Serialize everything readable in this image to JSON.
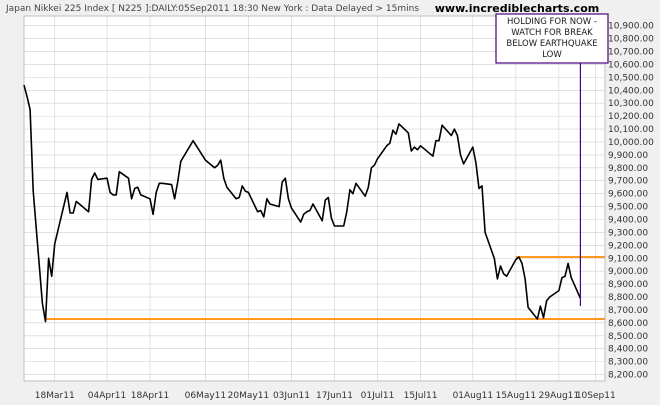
{
  "header": {
    "text": "Japan Nikkei 225 Index [ N225 ]:DAILY:05Sep2011 18:30 New York : Data Delayed > 15mins",
    "site": "www.incrediblecharts.com"
  },
  "colors": {
    "background": "#f0f0f0",
    "plot_background": "#ffffff",
    "grid": "#cfcfcf",
    "price_line": "#000000",
    "support_line": "#ff8c00",
    "annotation_border": "#4b0082",
    "annotation_fill": "#ffffff"
  },
  "chart_data": {
    "type": "line",
    "title": "Japan Nikkei 225 Index [ N225 ]:DAILY:05Sep2011 18:30 New York : Data Delayed > 15mins",
    "xlabel": "",
    "ylabel": "",
    "ylim": [
      8150,
      10975
    ],
    "grid": true,
    "y_axis_side": "right",
    "y_ticks": [
      8200,
      8300,
      8400,
      8500,
      8600,
      8700,
      8800,
      8900,
      9000,
      9100,
      9200,
      9300,
      9400,
      9500,
      9600,
      9700,
      9800,
      9900,
      10000,
      10100,
      10200,
      10300,
      10400,
      10500,
      10600,
      10700,
      10800,
      10900
    ],
    "y_tick_labels": [
      "8,200.00",
      "8,300.00",
      "8,400.00",
      "8,500.00",
      "8,600.00",
      "8,700.00",
      "8,800.00",
      "8,900.00",
      "9,000.00",
      "9,100.00",
      "9,200.00",
      "9,300.00",
      "9,400.00",
      "9,500.00",
      "9,600.00",
      "9,700.00",
      "9,800.00",
      "9,900.00",
      "10,000.00",
      "10,100.00",
      "10,200.00",
      "10,300.00",
      "10,400.00",
      "10,500.00",
      "10,600.00",
      "10,700.00",
      "10,800.00",
      "10,900.00"
    ],
    "x_ticks": [
      "2011-03-18",
      "2011-04-04",
      "2011-04-18",
      "2011-05-06",
      "2011-05-20",
      "2011-06-03",
      "2011-06-17",
      "2011-07-01",
      "2011-07-15",
      "2011-08-01",
      "2011-08-15",
      "2011-08-29",
      "2011-09-10"
    ],
    "x_tick_labels": [
      "18Mar11",
      "04Apr11",
      "18Apr11",
      "06May11",
      "20May11",
      "03Jun11",
      "17Jun11",
      "01Jul11",
      "15Jul11",
      "01Aug11",
      "15Aug11",
      "29Aug11",
      "10Sep11"
    ],
    "xlim": [
      "2011-03-08",
      "2011-09-13"
    ],
    "series": [
      {
        "values": [
          [
            "2011-03-08",
            10440
          ],
          [
            "2011-03-09",
            10350
          ],
          [
            "2011-03-10",
            10250
          ],
          [
            "2011-03-11",
            9620
          ],
          [
            "2011-03-14",
            8750
          ],
          [
            "2011-03-15",
            8610
          ],
          [
            "2011-03-16",
            9100
          ],
          [
            "2011-03-17",
            8960
          ],
          [
            "2011-03-18",
            9210
          ],
          [
            "2011-03-22",
            9610
          ],
          [
            "2011-03-23",
            9450
          ],
          [
            "2011-03-24",
            9450
          ],
          [
            "2011-03-25",
            9540
          ],
          [
            "2011-03-28",
            9480
          ],
          [
            "2011-03-29",
            9460
          ],
          [
            "2011-03-30",
            9710
          ],
          [
            "2011-03-31",
            9760
          ],
          [
            "2011-04-01",
            9710
          ],
          [
            "2011-04-04",
            9720
          ],
          [
            "2011-04-05",
            9610
          ],
          [
            "2011-04-06",
            9590
          ],
          [
            "2011-04-07",
            9590
          ],
          [
            "2011-04-08",
            9770
          ],
          [
            "2011-04-11",
            9720
          ],
          [
            "2011-04-12",
            9560
          ],
          [
            "2011-04-13",
            9640
          ],
          [
            "2011-04-14",
            9650
          ],
          [
            "2011-04-15",
            9590
          ],
          [
            "2011-04-18",
            9560
          ],
          [
            "2011-04-19",
            9440
          ],
          [
            "2011-04-20",
            9610
          ],
          [
            "2011-04-21",
            9680
          ],
          [
            "2011-04-22",
            9680
          ],
          [
            "2011-04-25",
            9670
          ],
          [
            "2011-04-26",
            9560
          ],
          [
            "2011-04-27",
            9690
          ],
          [
            "2011-04-28",
            9850
          ],
          [
            "2011-05-02",
            10010
          ],
          [
            "2011-05-06",
            9860
          ],
          [
            "2011-05-09",
            9800
          ],
          [
            "2011-05-10",
            9820
          ],
          [
            "2011-05-11",
            9860
          ],
          [
            "2011-05-12",
            9720
          ],
          [
            "2011-05-13",
            9650
          ],
          [
            "2011-05-16",
            9560
          ],
          [
            "2011-05-17",
            9570
          ],
          [
            "2011-05-18",
            9660
          ],
          [
            "2011-05-19",
            9620
          ],
          [
            "2011-05-20",
            9610
          ],
          [
            "2011-05-23",
            9460
          ],
          [
            "2011-05-24",
            9470
          ],
          [
            "2011-05-25",
            9420
          ],
          [
            "2011-05-26",
            9560
          ],
          [
            "2011-05-27",
            9520
          ],
          [
            "2011-05-30",
            9500
          ],
          [
            "2011-05-31",
            9690
          ],
          [
            "2011-06-01",
            9720
          ],
          [
            "2011-06-02",
            9560
          ],
          [
            "2011-06-03",
            9490
          ],
          [
            "2011-06-06",
            9380
          ],
          [
            "2011-06-07",
            9440
          ],
          [
            "2011-06-08",
            9460
          ],
          [
            "2011-06-09",
            9470
          ],
          [
            "2011-06-10",
            9520
          ],
          [
            "2011-06-13",
            9390
          ],
          [
            "2011-06-14",
            9550
          ],
          [
            "2011-06-15",
            9570
          ],
          [
            "2011-06-16",
            9410
          ],
          [
            "2011-06-17",
            9350
          ],
          [
            "2011-06-20",
            9350
          ],
          [
            "2011-06-21",
            9460
          ],
          [
            "2011-06-22",
            9630
          ],
          [
            "2011-06-23",
            9600
          ],
          [
            "2011-06-24",
            9680
          ],
          [
            "2011-06-27",
            9580
          ],
          [
            "2011-06-28",
            9650
          ],
          [
            "2011-06-29",
            9800
          ],
          [
            "2011-06-30",
            9820
          ],
          [
            "2011-07-01",
            9870
          ],
          [
            "2011-07-04",
            9970
          ],
          [
            "2011-07-05",
            9990
          ],
          [
            "2011-07-06",
            10090
          ],
          [
            "2011-07-07",
            10060
          ],
          [
            "2011-07-08",
            10140
          ],
          [
            "2011-07-11",
            10070
          ],
          [
            "2011-07-12",
            9930
          ],
          [
            "2011-07-13",
            9960
          ],
          [
            "2011-07-14",
            9940
          ],
          [
            "2011-07-15",
            9970
          ],
          [
            "2011-07-19",
            9890
          ],
          [
            "2011-07-20",
            10010
          ],
          [
            "2011-07-21",
            10010
          ],
          [
            "2011-07-22",
            10130
          ],
          [
            "2011-07-25",
            10050
          ],
          [
            "2011-07-26",
            10100
          ],
          [
            "2011-07-27",
            10050
          ],
          [
            "2011-07-28",
            9900
          ],
          [
            "2011-07-29",
            9830
          ],
          [
            "2011-08-01",
            9960
          ],
          [
            "2011-08-02",
            9840
          ],
          [
            "2011-08-03",
            9640
          ],
          [
            "2011-08-04",
            9660
          ],
          [
            "2011-08-05",
            9300
          ],
          [
            "2011-08-08",
            9100
          ],
          [
            "2011-08-09",
            8940
          ],
          [
            "2011-08-10",
            9040
          ],
          [
            "2011-08-11",
            8980
          ],
          [
            "2011-08-12",
            8960
          ],
          [
            "2011-08-15",
            9090
          ],
          [
            "2011-08-16",
            9110
          ],
          [
            "2011-08-17",
            9060
          ],
          [
            "2011-08-18",
            8940
          ],
          [
            "2011-08-19",
            8720
          ],
          [
            "2011-08-22",
            8630
          ],
          [
            "2011-08-23",
            8730
          ],
          [
            "2011-08-24",
            8640
          ],
          [
            "2011-08-25",
            8770
          ],
          [
            "2011-08-26",
            8800
          ],
          [
            "2011-08-29",
            8850
          ],
          [
            "2011-08-30",
            8950
          ],
          [
            "2011-08-31",
            8960
          ],
          [
            "2011-09-01",
            9060
          ],
          [
            "2011-09-02",
            8950
          ],
          [
            "2011-09-05",
            8790
          ]
        ]
      }
    ],
    "horizontal_lines": [
      {
        "y": 8630,
        "x_start": "2011-03-15",
        "x_end": "2011-09-13"
      },
      {
        "y": 9110,
        "x_start": "2011-08-15",
        "x_end": "2011-09-13"
      }
    ],
    "annotation": {
      "lines": [
        "HOLDING FOR NOW -",
        "WATCH FOR BREAK",
        "BELOW EARTHQUAKE",
        "LOW"
      ],
      "arrow_date": "2011-09-05",
      "arrow_to_value": 8730
    }
  }
}
